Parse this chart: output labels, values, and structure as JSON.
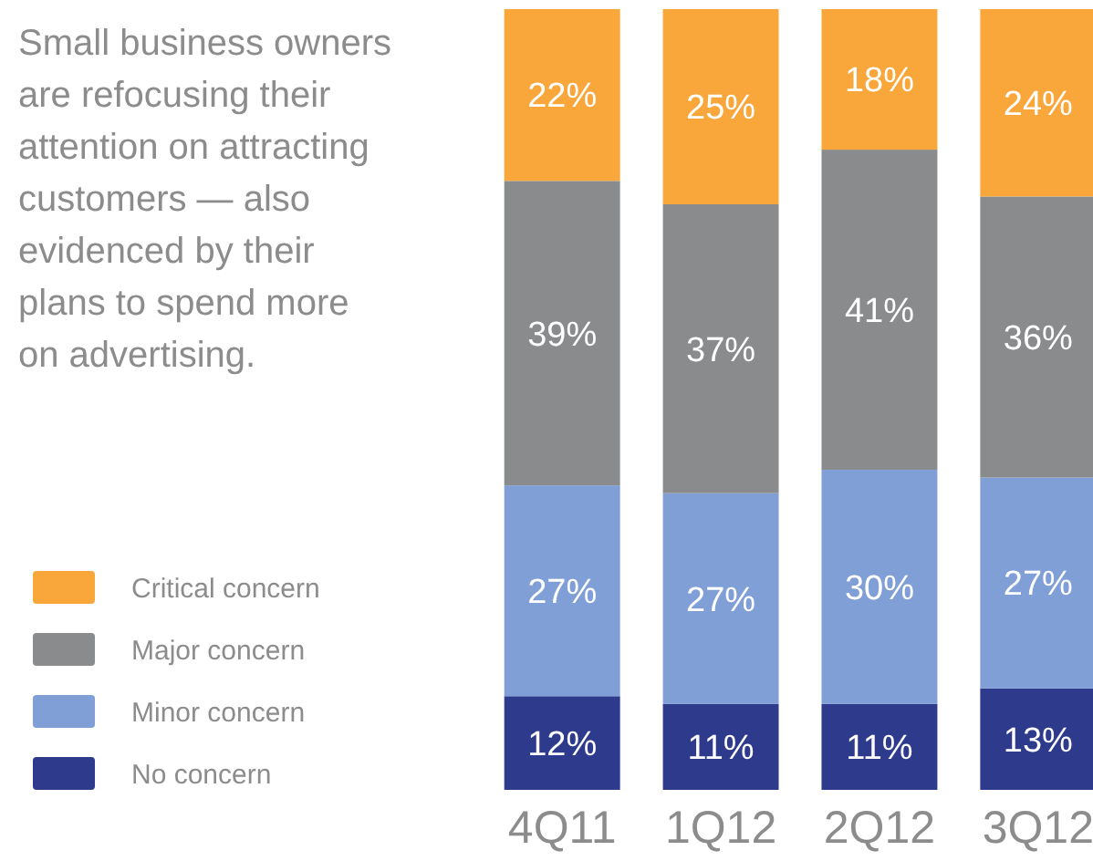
{
  "chart_data": {
    "type": "bar",
    "title": "Small business owners\nare refocusing their\nattention on attracting\ncustomers — also\nevidenced by their\nplans to spend more\non advertising.",
    "categories": [
      "4Q11",
      "1Q12",
      "2Q12",
      "3Q12"
    ],
    "stacked": true,
    "tick_labels": "x",
    "legend": "bottom left",
    "series": [
      {
        "name": "No concern",
        "color": "#2e3a8c",
        "values": [
          12,
          11,
          11,
          13
        ],
        "value_labels": [
          "12%",
          "11%",
          "11%",
          "13%"
        ]
      },
      {
        "name": "Minor concern",
        "color": "#7f9fd6",
        "values": [
          27,
          27,
          30,
          27
        ],
        "value_labels": [
          "27%",
          "27%",
          "30%",
          "27%"
        ]
      },
      {
        "name": "Major concern",
        "color": "#8a8b8d",
        "values": [
          39,
          37,
          41,
          36
        ],
        "value_labels": [
          "39%",
          "37%",
          "41%",
          "36%"
        ]
      },
      {
        "name": "Critical concern",
        "color": "#f9a63a",
        "values": [
          22,
          25,
          18,
          24
        ],
        "value_labels": [
          "22%",
          "25%",
          "18%",
          "24%"
        ]
      }
    ]
  }
}
